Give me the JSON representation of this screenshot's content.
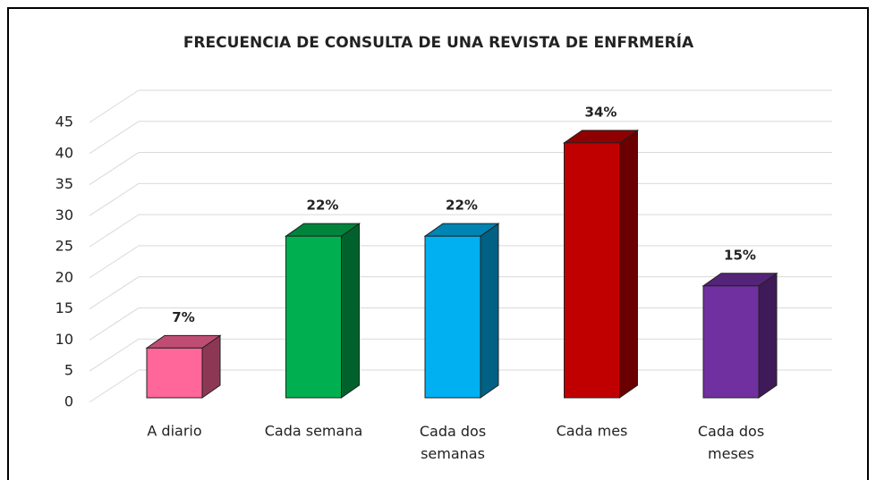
{
  "chart_data": {
    "type": "bar3d",
    "title": "FRECUENCIA DE CONSULTA DE UNA REVISTA DE ENFRMERÍA",
    "categories": [
      "A diario",
      "Cada semana",
      "Cada dos semanas",
      "Cada mes",
      "Cada dos meses"
    ],
    "values": [
      8,
      26,
      26,
      41,
      18
    ],
    "value_labels": [
      "7%",
      "22%",
      "22%",
      "34%",
      "15%"
    ],
    "colors": [
      "#ff6699",
      "#00b050",
      "#00b0f0",
      "#c00000",
      "#7030a0"
    ],
    "ylim": [
      0,
      45
    ],
    "yticks": [
      0,
      5,
      10,
      15,
      20,
      25,
      30,
      35,
      40,
      45
    ],
    "grid": true
  }
}
